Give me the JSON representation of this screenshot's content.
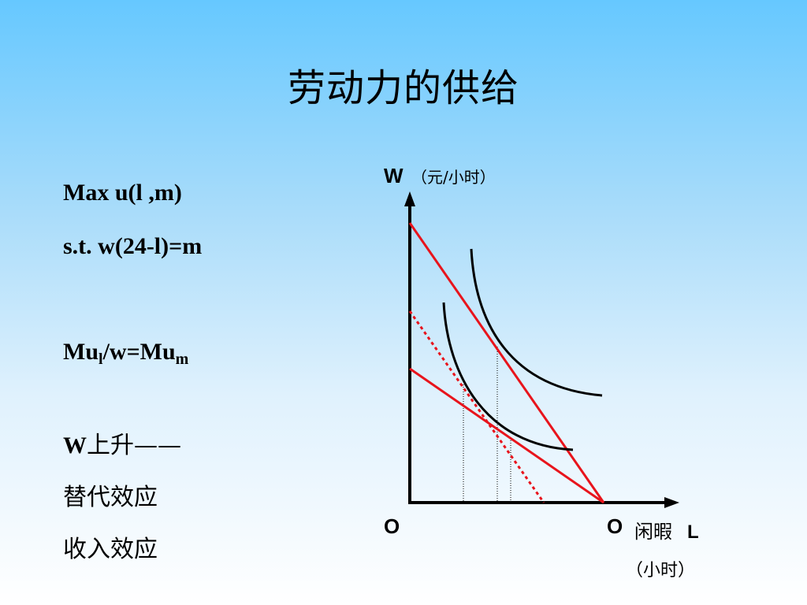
{
  "slide": {
    "title": "劳动力的供给"
  },
  "left_panel": {
    "objective": "Max u(l ,m)",
    "constraint": "s.t. w(24-l)=m",
    "condition": {
      "mu": "Mu",
      "sub_l": "l",
      "mid": "/w=Mu",
      "sub_m": "m"
    },
    "w_rise": {
      "w": "W",
      "text": "上升——"
    },
    "substitution_effect": "替代效应",
    "income_effect": "收入效应"
  },
  "diagram": {
    "y_axis_label_w": "W",
    "y_axis_label_unit": "（元/小时）",
    "origin_left": "O",
    "origin_right": "O",
    "x_axis_label_cn": "闲暇",
    "x_axis_label_l": "L",
    "x_axis_unit": "（小时）",
    "colors": {
      "budget_line": "#e8141c",
      "curve": "#000000",
      "axis": "#000000"
    }
  }
}
